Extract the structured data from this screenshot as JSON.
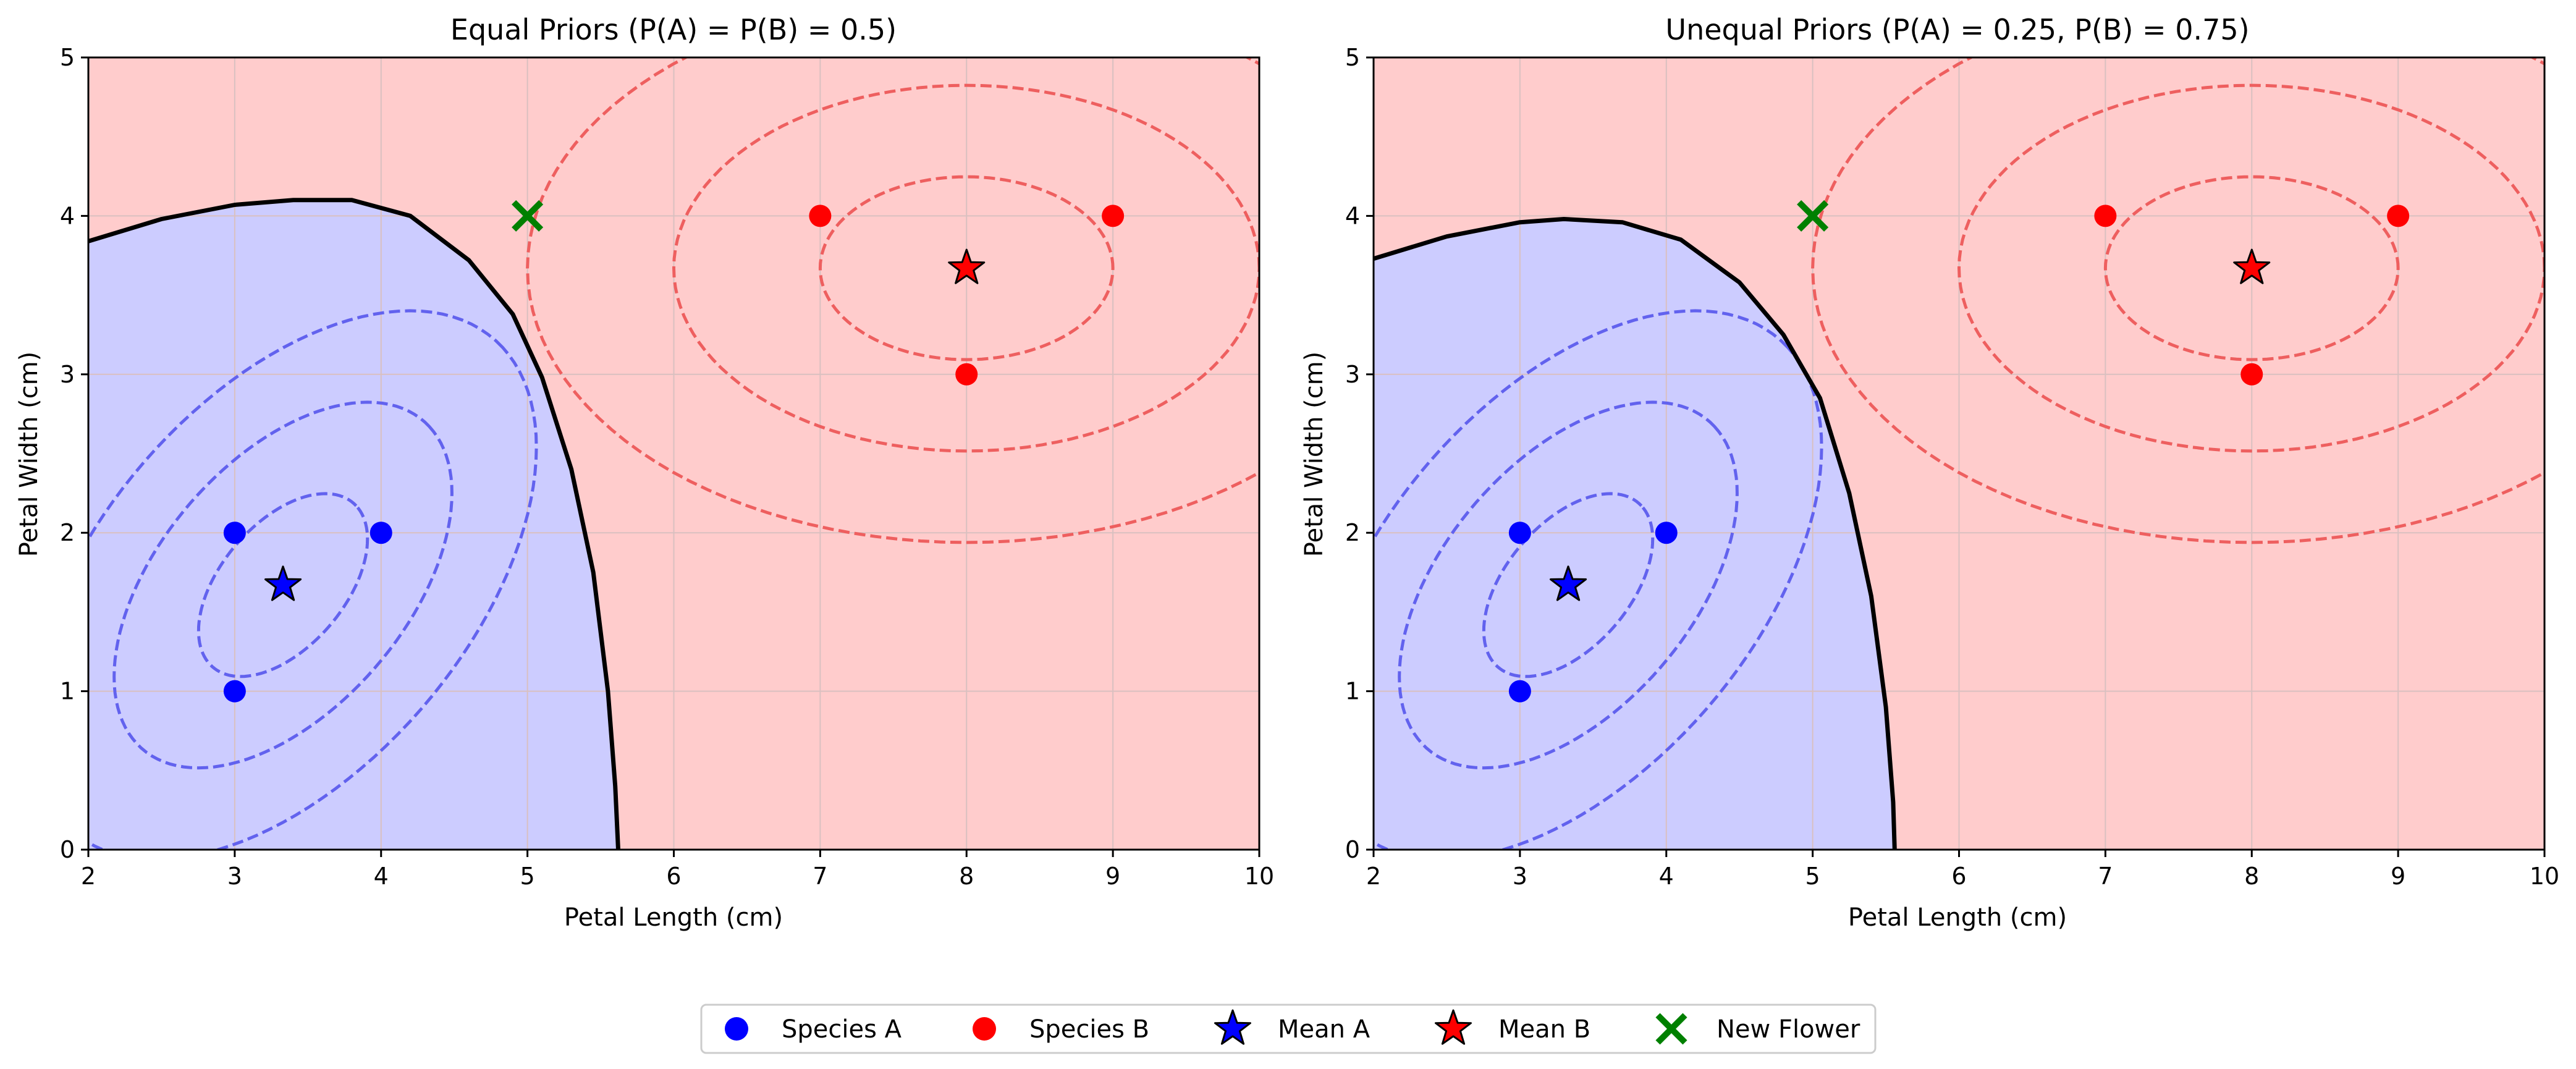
{
  "colors": {
    "species_a": "#0000ff",
    "species_b": "#ff0000",
    "region_a": "#ccccff",
    "region_b": "#ffcccc",
    "contour_a": "#6262ee",
    "contour_b": "#ee5f5f",
    "new_flower": "#008000",
    "boundary": "#000000",
    "grid": "#d9c0c0"
  },
  "legend": {
    "placement": "bottom-center",
    "entries": [
      {
        "label": "Species A",
        "marker": "circle",
        "color": "#0000ff"
      },
      {
        "label": "Species B",
        "marker": "circle",
        "color": "#ff0000"
      },
      {
        "label": "Mean A",
        "marker": "star",
        "color": "#0000ff"
      },
      {
        "label": "Mean B",
        "marker": "star",
        "color": "#ff0000"
      },
      {
        "label": "New Flower",
        "marker": "x",
        "color": "#008000"
      }
    ]
  },
  "chart_data": [
    {
      "type": "scatter",
      "title": "Equal Priors (P(A) = P(B) = 0.5)",
      "xlabel": "Petal Length (cm)",
      "ylabel": "Petal Width (cm)",
      "xlim": [
        2,
        10
      ],
      "ylim": [
        0,
        5
      ],
      "xticks": [
        "2",
        "3",
        "4",
        "5",
        "6",
        "7",
        "8",
        "9",
        "10"
      ],
      "yticks": [
        "0",
        "1",
        "2",
        "3",
        "4",
        "5"
      ],
      "grid": true,
      "series": [
        {
          "name": "Species A",
          "points": [
            [
              3,
              1
            ],
            [
              3,
              2
            ],
            [
              4,
              2
            ]
          ]
        },
        {
          "name": "Species B",
          "points": [
            [
              7,
              4
            ],
            [
              8,
              3
            ],
            [
              9,
              4
            ]
          ]
        },
        {
          "name": "Mean A",
          "points": [
            [
              3.33,
              1.67
            ]
          ]
        },
        {
          "name": "Mean B",
          "points": [
            [
              8,
              3.67
            ]
          ]
        },
        {
          "name": "New Flower",
          "points": [
            [
              5,
              4
            ]
          ]
        }
      ],
      "gaussian_contours": {
        "A": {
          "mean": [
            3.33,
            1.67
          ],
          "cov": [
            [
              0.333,
              0.167
            ],
            [
              0.167,
              0.333
            ]
          ],
          "levels_sigma": [
            1,
            2,
            3
          ],
          "style": "dashed"
        },
        "B": {
          "mean": [
            8,
            3.67
          ],
          "cov": [
            [
              1.0,
              0.0
            ],
            [
              0.0,
              0.333
            ]
          ],
          "levels_sigma": [
            1,
            2,
            3
          ],
          "style": "dashed"
        }
      },
      "decision_boundary": [
        [
          2,
          3.84
        ],
        [
          2.5,
          3.98
        ],
        [
          3,
          4.07
        ],
        [
          3.4,
          4.1
        ],
        [
          3.8,
          4.1
        ],
        [
          4.2,
          4.0
        ],
        [
          4.6,
          3.72
        ],
        [
          4.9,
          3.38
        ],
        [
          5.1,
          2.98
        ],
        [
          5.3,
          2.4
        ],
        [
          5.45,
          1.75
        ],
        [
          5.55,
          1.0
        ],
        [
          5.6,
          0.4
        ],
        [
          5.62,
          0.0
        ]
      ],
      "regions": {
        "inside_boundary": "Species A",
        "outside_boundary": "Species B"
      }
    },
    {
      "type": "scatter",
      "title": "Unequal Priors (P(A) = 0.25, P(B) = 0.75)",
      "xlabel": "Petal Length (cm)",
      "ylabel": "Petal Width (cm)",
      "xlim": [
        2,
        10
      ],
      "ylim": [
        0,
        5
      ],
      "xticks": [
        "2",
        "3",
        "4",
        "5",
        "6",
        "7",
        "8",
        "9",
        "10"
      ],
      "yticks": [
        "0",
        "1",
        "2",
        "3",
        "4",
        "5"
      ],
      "grid": true,
      "series": [
        {
          "name": "Species A",
          "points": [
            [
              3,
              1
            ],
            [
              3,
              2
            ],
            [
              4,
              2
            ]
          ]
        },
        {
          "name": "Species B",
          "points": [
            [
              7,
              4
            ],
            [
              8,
              3
            ],
            [
              9,
              4
            ]
          ]
        },
        {
          "name": "Mean A",
          "points": [
            [
              3.33,
              1.67
            ]
          ]
        },
        {
          "name": "Mean B",
          "points": [
            [
              8,
              3.67
            ]
          ]
        },
        {
          "name": "New Flower",
          "points": [
            [
              5,
              4
            ]
          ]
        }
      ],
      "gaussian_contours": {
        "A": {
          "mean": [
            3.33,
            1.67
          ],
          "cov": [
            [
              0.333,
              0.167
            ],
            [
              0.167,
              0.333
            ]
          ],
          "levels_sigma": [
            1,
            2,
            3
          ],
          "style": "dashed"
        },
        "B": {
          "mean": [
            8,
            3.67
          ],
          "cov": [
            [
              1.0,
              0.0
            ],
            [
              0.0,
              0.333
            ]
          ],
          "levels_sigma": [
            1,
            2,
            3
          ],
          "style": "dashed"
        }
      },
      "decision_boundary": [
        [
          2,
          3.73
        ],
        [
          2.5,
          3.87
        ],
        [
          3,
          3.96
        ],
        [
          3.3,
          3.98
        ],
        [
          3.7,
          3.96
        ],
        [
          4.1,
          3.85
        ],
        [
          4.5,
          3.58
        ],
        [
          4.8,
          3.25
        ],
        [
          5.05,
          2.85
        ],
        [
          5.25,
          2.25
        ],
        [
          5.4,
          1.6
        ],
        [
          5.5,
          0.9
        ],
        [
          5.55,
          0.3
        ],
        [
          5.56,
          0.0
        ]
      ],
      "regions": {
        "inside_boundary": "Species A",
        "outside_boundary": "Species B"
      }
    }
  ]
}
